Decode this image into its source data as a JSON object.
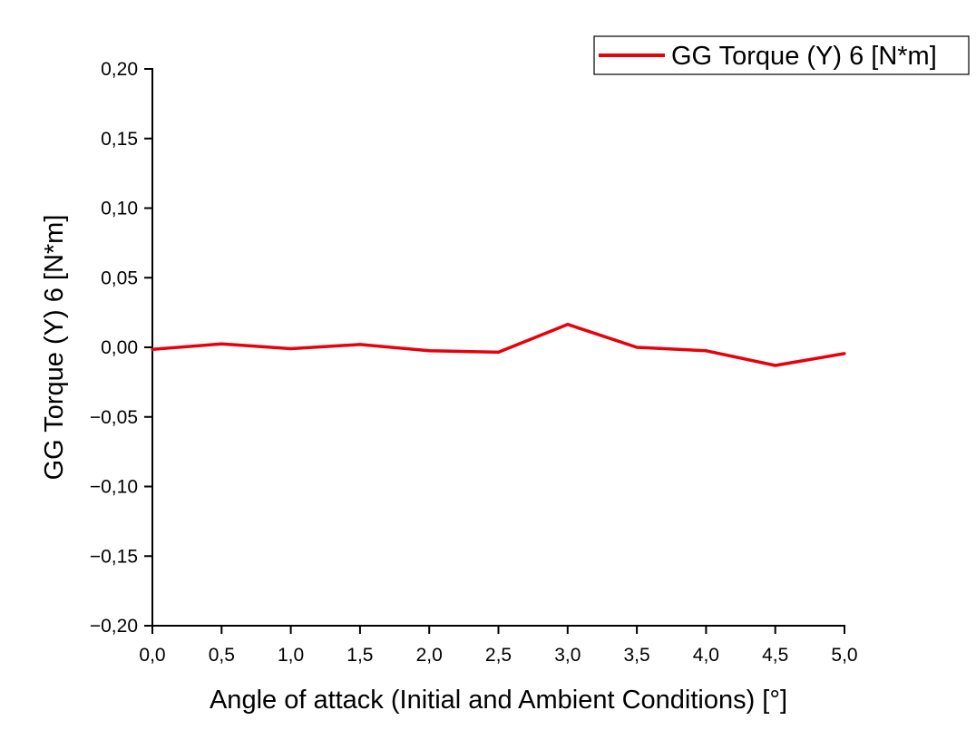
{
  "chart_data": {
    "type": "line",
    "xlabel": "Angle of attack (Initial and Ambient Conditions) [°]",
    "ylabel": "GG Torque (Y) 6 [N*m]",
    "xlim": [
      0,
      5
    ],
    "ylim": [
      -0.2,
      0.2
    ],
    "x_ticks": [
      0,
      0.5,
      1,
      1.5,
      2,
      2.5,
      3,
      3.5,
      4,
      4.5,
      5
    ],
    "x_tick_labels": [
      "0,0",
      "0,5",
      "1,0",
      "1,5",
      "2,0",
      "2,5",
      "3,0",
      "3,5",
      "4,0",
      "4,5",
      "5,0"
    ],
    "y_ticks": [
      -0.2,
      -0.15,
      -0.1,
      -0.05,
      0,
      0.05,
      0.1,
      0.15,
      0.2
    ],
    "y_tick_labels": [
      "−0,20",
      "−0,15",
      "−0,10",
      "−0,05",
      "0,00",
      "0,05",
      "0,10",
      "0,15",
      "0,20"
    ],
    "grid": false,
    "legend": {
      "position": "top-right",
      "entries": [
        "GG Torque (Y) 6 [N*m]"
      ]
    },
    "series": [
      {
        "name": "GG Torque (Y) 6 [N*m]",
        "color": "#e8000b",
        "x": [
          0,
          0.5,
          1,
          1.5,
          2,
          2.5,
          3,
          3.5,
          4,
          4.5,
          5
        ],
        "y": [
          -0.0015,
          0.0025,
          -0.001,
          0.002,
          -0.0025,
          -0.0035,
          0.0165,
          0.0,
          -0.0025,
          -0.013,
          -0.0045
        ]
      }
    ]
  }
}
